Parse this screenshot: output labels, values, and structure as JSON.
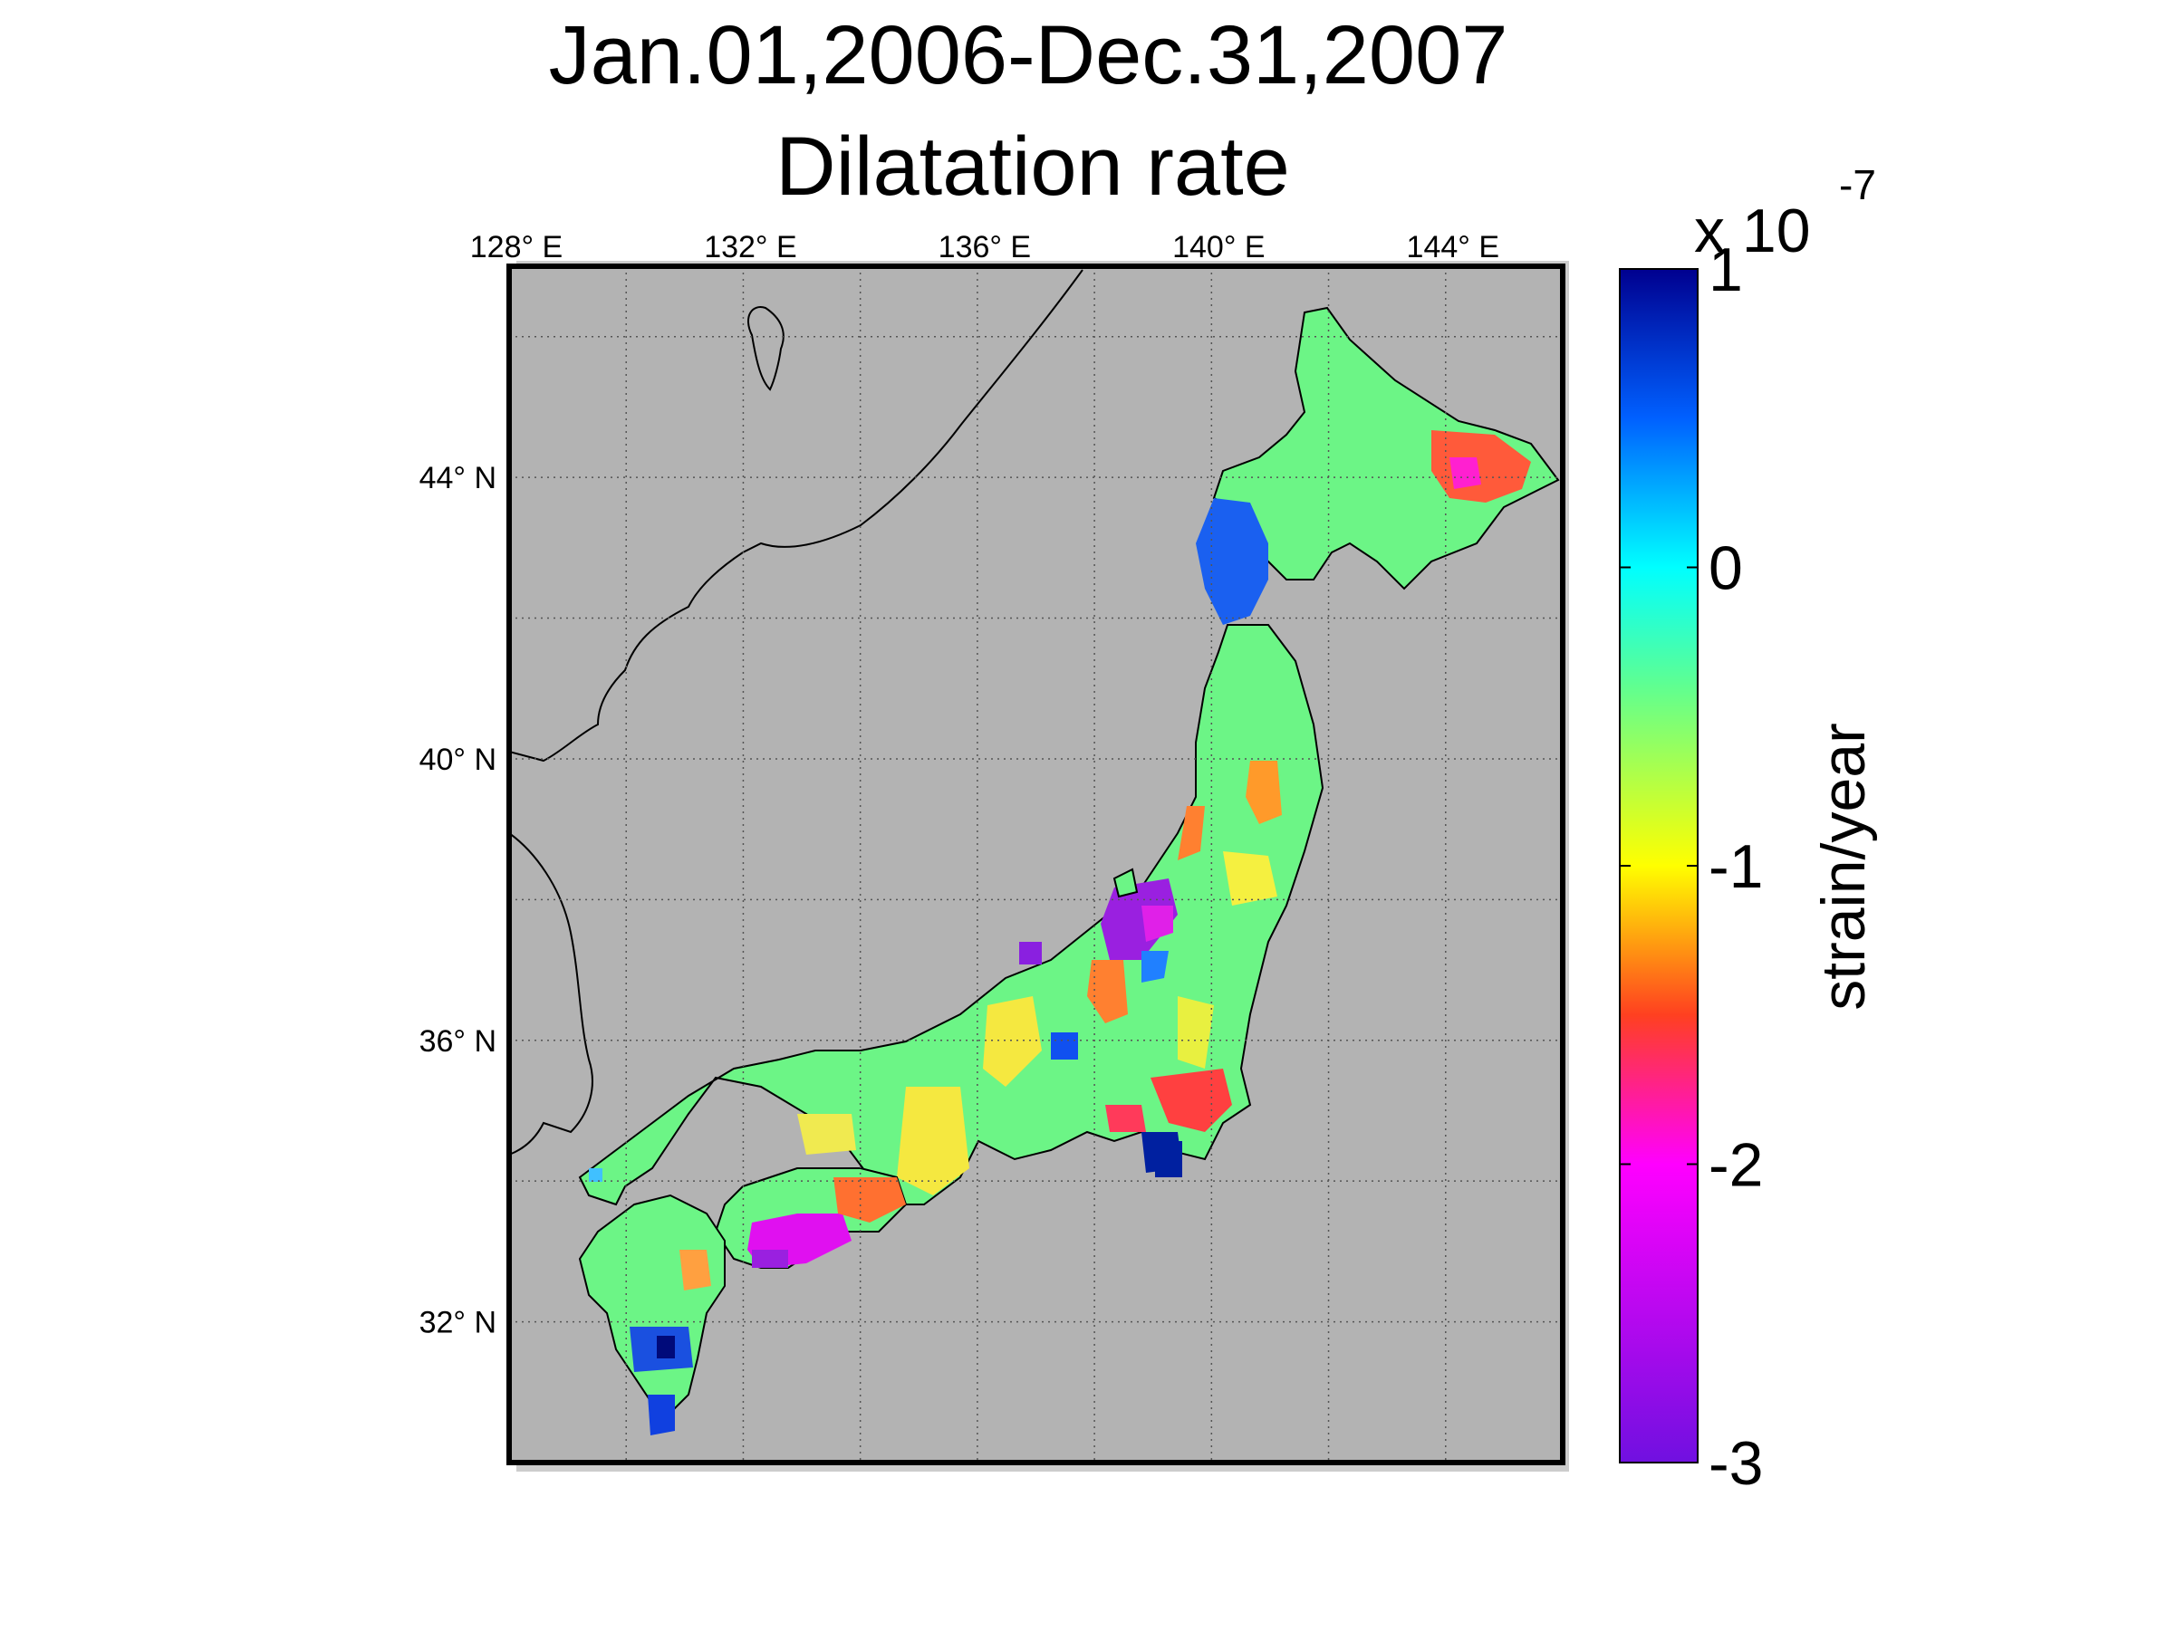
{
  "title": {
    "line1": "Jan.01,2006-Dec.31,2007",
    "line2": "Dilatation rate"
  },
  "map": {
    "lon_range": [
      128,
      146
    ],
    "lat_range": [
      30,
      47
    ],
    "lon_ticks": [
      {
        "value": 128,
        "label": "128",
        "suffix": "E"
      },
      {
        "value": 132,
        "label": "132",
        "suffix": "E"
      },
      {
        "value": 136,
        "label": "136",
        "suffix": "E"
      },
      {
        "value": 140,
        "label": "140",
        "suffix": "E"
      },
      {
        "value": 144,
        "label": "144",
        "suffix": "E"
      }
    ],
    "lat_ticks": [
      {
        "value": 44,
        "label": "44",
        "suffix": "N"
      },
      {
        "value": 40,
        "label": "40",
        "suffix": "N"
      },
      {
        "value": 36,
        "label": "36",
        "suffix": "N"
      },
      {
        "value": 32,
        "label": "32",
        "suffix": "N"
      }
    ],
    "degree_symbol": "°",
    "ocean_color": "#b3b3b3",
    "grid": "dotted"
  },
  "colorbar": {
    "label": "strain/year",
    "exponent_base": "x 10",
    "exponent_power": "-7",
    "range": [
      -3,
      1
    ],
    "ticks": [
      {
        "value": 1,
        "label": "1"
      },
      {
        "value": 0,
        "label": "0"
      },
      {
        "value": -1,
        "label": "-1"
      },
      {
        "value": -2,
        "label": "-2"
      },
      {
        "value": -3,
        "label": "-3"
      }
    ],
    "stops": [
      {
        "value": 1,
        "color": "#00008f"
      },
      {
        "value": 0.5,
        "color": "#0060ff"
      },
      {
        "value": 0,
        "color": "#00ffff"
      },
      {
        "value": -0.4,
        "color": "#60ff90"
      },
      {
        "value": -1,
        "color": "#ffff00"
      },
      {
        "value": -1.5,
        "color": "#ff4020"
      },
      {
        "value": -2,
        "color": "#ff00ff"
      },
      {
        "value": -3,
        "color": "#7010e0"
      }
    ]
  }
}
